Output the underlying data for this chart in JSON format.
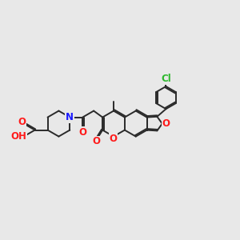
{
  "background_color": "#e8e8e8",
  "bond_color": "#2a2a2a",
  "bond_width": 1.4,
  "atom_colors": {
    "N": "#1a1aff",
    "O": "#ff1a1a",
    "Cl": "#2db82d",
    "H": "#666666",
    "C": "#2a2a2a"
  },
  "figsize": [
    3.0,
    3.0
  ],
  "dpi": 100,
  "xlim": [
    -1.5,
    11.5
  ],
  "ylim": [
    2.0,
    9.5
  ]
}
